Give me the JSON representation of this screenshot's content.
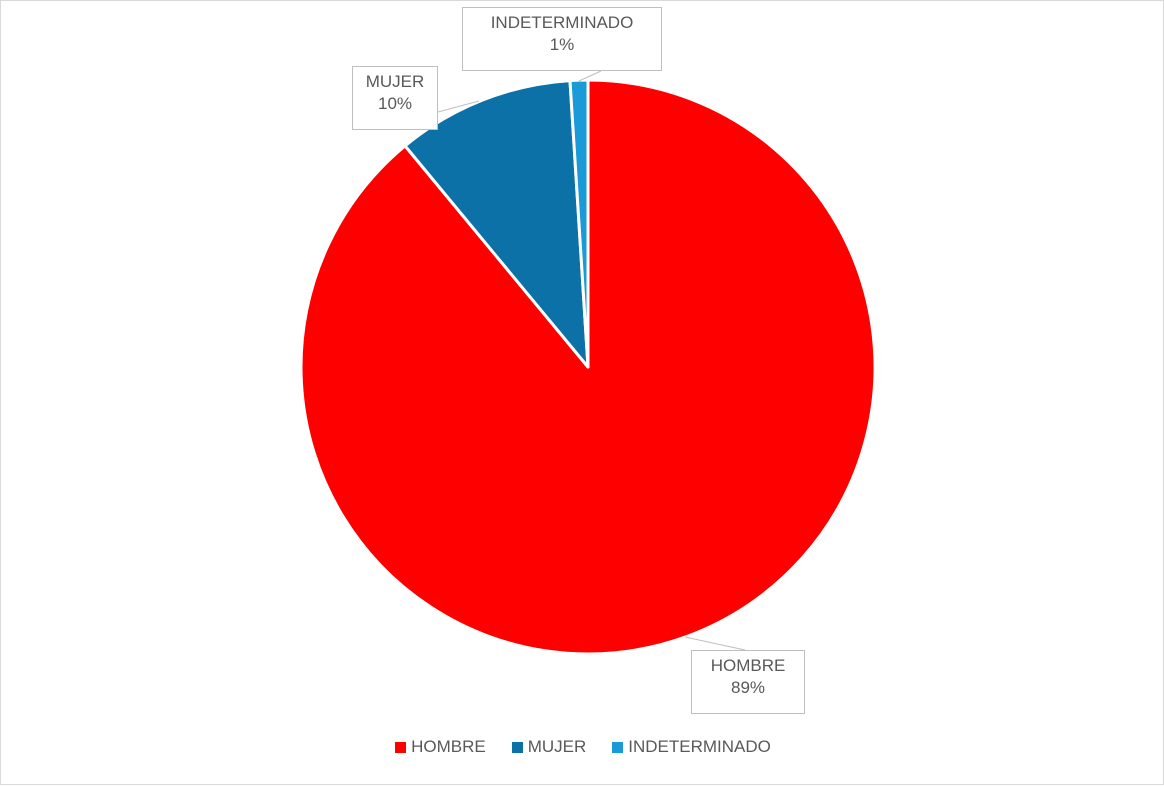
{
  "chart_data": {
    "type": "pie",
    "title": "",
    "categories": [
      "HOMBRE",
      "MUJER",
      "INDETERMINADO"
    ],
    "values": [
      89,
      10,
      1
    ],
    "value_labels": [
      "89%",
      "10%",
      "1%"
    ],
    "colors": [
      "#ff0000",
      "#0b71a6",
      "#1a9ad6"
    ],
    "legend_position": "bottom"
  }
}
